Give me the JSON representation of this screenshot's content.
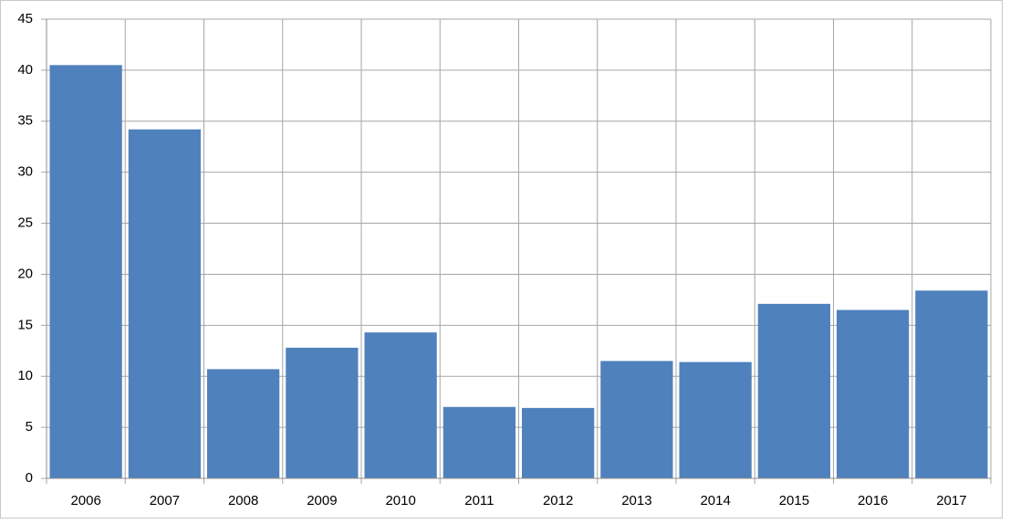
{
  "chart_data": {
    "type": "bar",
    "categories": [
      "2006",
      "2007",
      "2008",
      "2009",
      "2010",
      "2011",
      "2012",
      "2013",
      "2014",
      "2015",
      "2016",
      "2017"
    ],
    "values": [
      40.5,
      34.2,
      10.7,
      12.8,
      14.3,
      7.0,
      6.9,
      11.5,
      11.4,
      17.1,
      16.5,
      18.4
    ],
    "color": "#4f81bd",
    "ylim": [
      0,
      45
    ],
    "yticks": [
      0,
      5,
      10,
      15,
      20,
      25,
      30,
      35,
      40,
      45
    ],
    "grid": true
  }
}
